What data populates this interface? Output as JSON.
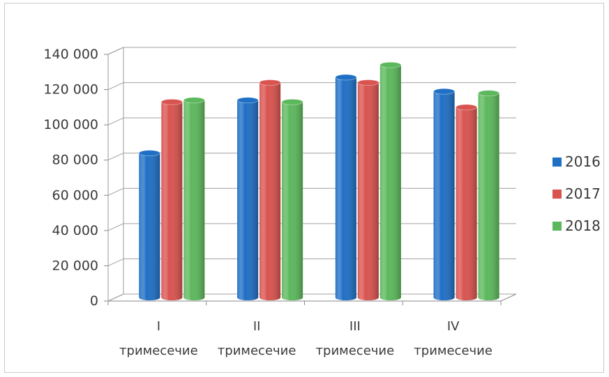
{
  "chart_data": {
    "type": "bar",
    "categories": [
      {
        "numeral": "I",
        "word": "тримесечие"
      },
      {
        "numeral": "II",
        "word": "тримесечие"
      },
      {
        "numeral": "III",
        "word": "тримесечие"
      },
      {
        "numeral": "IV",
        "word": "тримесечие"
      }
    ],
    "series": [
      {
        "name": "2016",
        "color": "#1f6fc5",
        "values": [
          82000,
          112000,
          125000,
          117000
        ]
      },
      {
        "name": "2017",
        "color": "#d9534f",
        "values": [
          111000,
          122000,
          122000,
          108000
        ]
      },
      {
        "name": "2018",
        "color": "#5cb85c",
        "values": [
          112000,
          111000,
          132000,
          116000
        ]
      }
    ],
    "ylim": [
      0,
      140000
    ],
    "yticks": [
      {
        "value": 0,
        "label": "0"
      },
      {
        "value": 20000,
        "label": "20 000"
      },
      {
        "value": 40000,
        "label": "40 000"
      },
      {
        "value": 60000,
        "label": "60 000"
      },
      {
        "value": 80000,
        "label": "80 000"
      },
      {
        "value": 100000,
        "label": "100 000"
      },
      {
        "value": 120000,
        "label": "120 000"
      },
      {
        "value": 140000,
        "label": "140 000"
      }
    ],
    "grid": true,
    "style": "3d-cylinder",
    "legend_position": "right"
  }
}
